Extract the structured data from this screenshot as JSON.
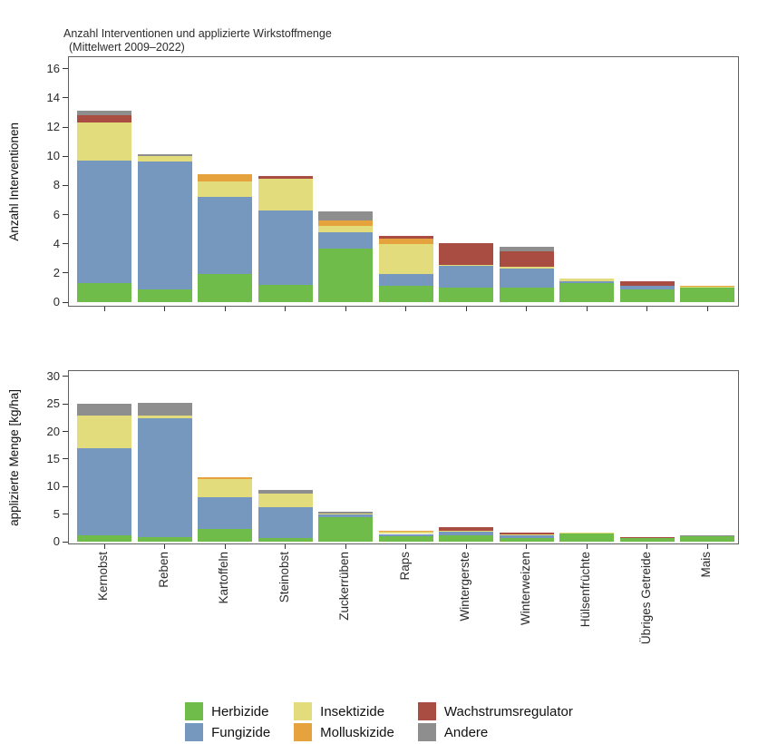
{
  "title": {
    "line1": "Anzahl Interventionen und applizierte Wirkstoffmenge",
    "line2": "(Mittelwert 2009–2022)"
  },
  "legend": {
    "items": [
      {
        "label": "Herbizide",
        "color": "#6fbc4b"
      },
      {
        "label": "Fungizide",
        "color": "#7697be"
      },
      {
        "label": "Insektizide",
        "color": "#e2dc7d"
      },
      {
        "label": "Molluskizide",
        "color": "#e6a33d"
      },
      {
        "label": "Wachstrumsregulator",
        "color": "#a94c41"
      },
      {
        "label": "Andere",
        "color": "#8e8e8e"
      }
    ]
  },
  "axis": {
    "tick_color": "#333333",
    "panel_border_color": "#5f5f5f"
  },
  "chart_data": [
    {
      "type": "bar",
      "stacked": true,
      "ylabel": "Anzahl Interventionen",
      "ylim": [
        0,
        16
      ],
      "yticks": [
        0,
        2,
        4,
        6,
        8,
        10,
        12,
        14,
        16
      ],
      "grid": false,
      "categories": [
        "Kernobst",
        "Reben",
        "Kartoffeln",
        "Steinobst",
        "Zuckerrüben",
        "Raps",
        "Wintergerste",
        "Winterweizen",
        "Hülsenfrüchte",
        "Übriges Getreide",
        "Mais"
      ],
      "series": [
        {
          "name": "Herbizide",
          "color": "#6fbc4b",
          "values": [
            1.3,
            0.9,
            1.9,
            1.2,
            3.7,
            1.1,
            1.0,
            1.0,
            1.3,
            0.9,
            1.0
          ]
        },
        {
          "name": "Fungizide",
          "color": "#7697be",
          "values": [
            8.4,
            8.75,
            5.3,
            5.1,
            1.1,
            0.85,
            1.5,
            1.3,
            0.1,
            0.2,
            0
          ]
        },
        {
          "name": "Insektizide",
          "color": "#e2dc7d",
          "values": [
            2.6,
            0.35,
            1.1,
            2.15,
            0.4,
            2.05,
            0.05,
            0.15,
            0.2,
            0,
            0.1
          ]
        },
        {
          "name": "Molluskizide",
          "color": "#e6a33d",
          "values": [
            0,
            0,
            0.45,
            0,
            0.4,
            0.35,
            0,
            0,
            0,
            0,
            0.05
          ]
        },
        {
          "name": "Wachstrumsregulator",
          "color": "#a94c41",
          "values": [
            0.5,
            0,
            0,
            0.2,
            0,
            0.2,
            1.5,
            1.05,
            0,
            0.3,
            0
          ]
        },
        {
          "name": "Andere",
          "color": "#8e8e8e",
          "values": [
            0.3,
            0.15,
            0,
            0,
            0.6,
            0,
            0,
            0.3,
            0,
            0,
            0
          ]
        }
      ]
    },
    {
      "type": "bar",
      "stacked": true,
      "ylabel": "applizierte Menge [kg/ha]",
      "ylim": [
        0,
        30
      ],
      "yticks": [
        0,
        5,
        10,
        15,
        20,
        25,
        30
      ],
      "grid": false,
      "categories": [
        "Kernobst",
        "Reben",
        "Kartoffeln",
        "Steinobst",
        "Zuckerrüben",
        "Raps",
        "Wintergerste",
        "Winterweizen",
        "Hülsenfrüchte",
        "Übriges Getreide",
        "Mais"
      ],
      "series": [
        {
          "name": "Herbizide",
          "color": "#6fbc4b",
          "values": [
            1.2,
            0.9,
            2.3,
            0.7,
            4.4,
            1.05,
            1.2,
            0.65,
            1.55,
            0.75,
            1.1
          ]
        },
        {
          "name": "Fungizide",
          "color": "#7697be",
          "values": [
            15.8,
            21.5,
            5.7,
            5.6,
            0.5,
            0.35,
            0.7,
            0.55,
            0,
            0,
            0
          ]
        },
        {
          "name": "Insektizide",
          "color": "#e2dc7d",
          "values": [
            5.9,
            0.5,
            3.3,
            2.4,
            0.2,
            0.35,
            0.05,
            0.05,
            0.1,
            0,
            0
          ]
        },
        {
          "name": "Molluskizide",
          "color": "#e6a33d",
          "values": [
            0,
            0,
            0.4,
            0,
            0,
            0.25,
            0,
            0,
            0,
            0,
            0
          ]
        },
        {
          "name": "Wachstrumsregulator",
          "color": "#a94c41",
          "values": [
            0,
            0,
            0,
            0,
            0,
            0,
            0.75,
            0.4,
            0,
            0.1,
            0
          ]
        },
        {
          "name": "Andere",
          "color": "#8e8e8e",
          "values": [
            2.1,
            2.4,
            0,
            0.7,
            0.4,
            0,
            0,
            0,
            0,
            0,
            0.05
          ]
        }
      ]
    }
  ]
}
